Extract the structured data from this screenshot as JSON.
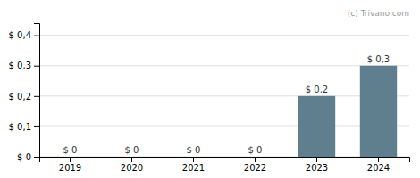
{
  "chart_data": {
    "type": "bar",
    "categories": [
      "2019",
      "2020",
      "2021",
      "2022",
      "2023",
      "2024"
    ],
    "values": [
      0.0,
      0.0,
      0.0,
      0.0,
      0.2,
      0.3
    ],
    "value_labels": [
      "$ 0",
      "$ 0",
      "$ 0",
      "$ 0",
      "$ 0,2",
      "$ 0,3"
    ],
    "data_labels": true,
    "color": "#5f7f8f",
    "ylim": [
      0,
      0.44
    ],
    "yticks": [
      {
        "value": 0.0,
        "label": "$ 0"
      },
      {
        "value": 0.1,
        "label": "$ 0,1"
      },
      {
        "value": 0.2,
        "label": "$ 0,2"
      },
      {
        "value": 0.3,
        "label": "$ 0,3"
      },
      {
        "value": 0.4,
        "label": "$ 0,4"
      }
    ],
    "grid": true,
    "annotations": [
      "(c) Trivano.com"
    ]
  }
}
